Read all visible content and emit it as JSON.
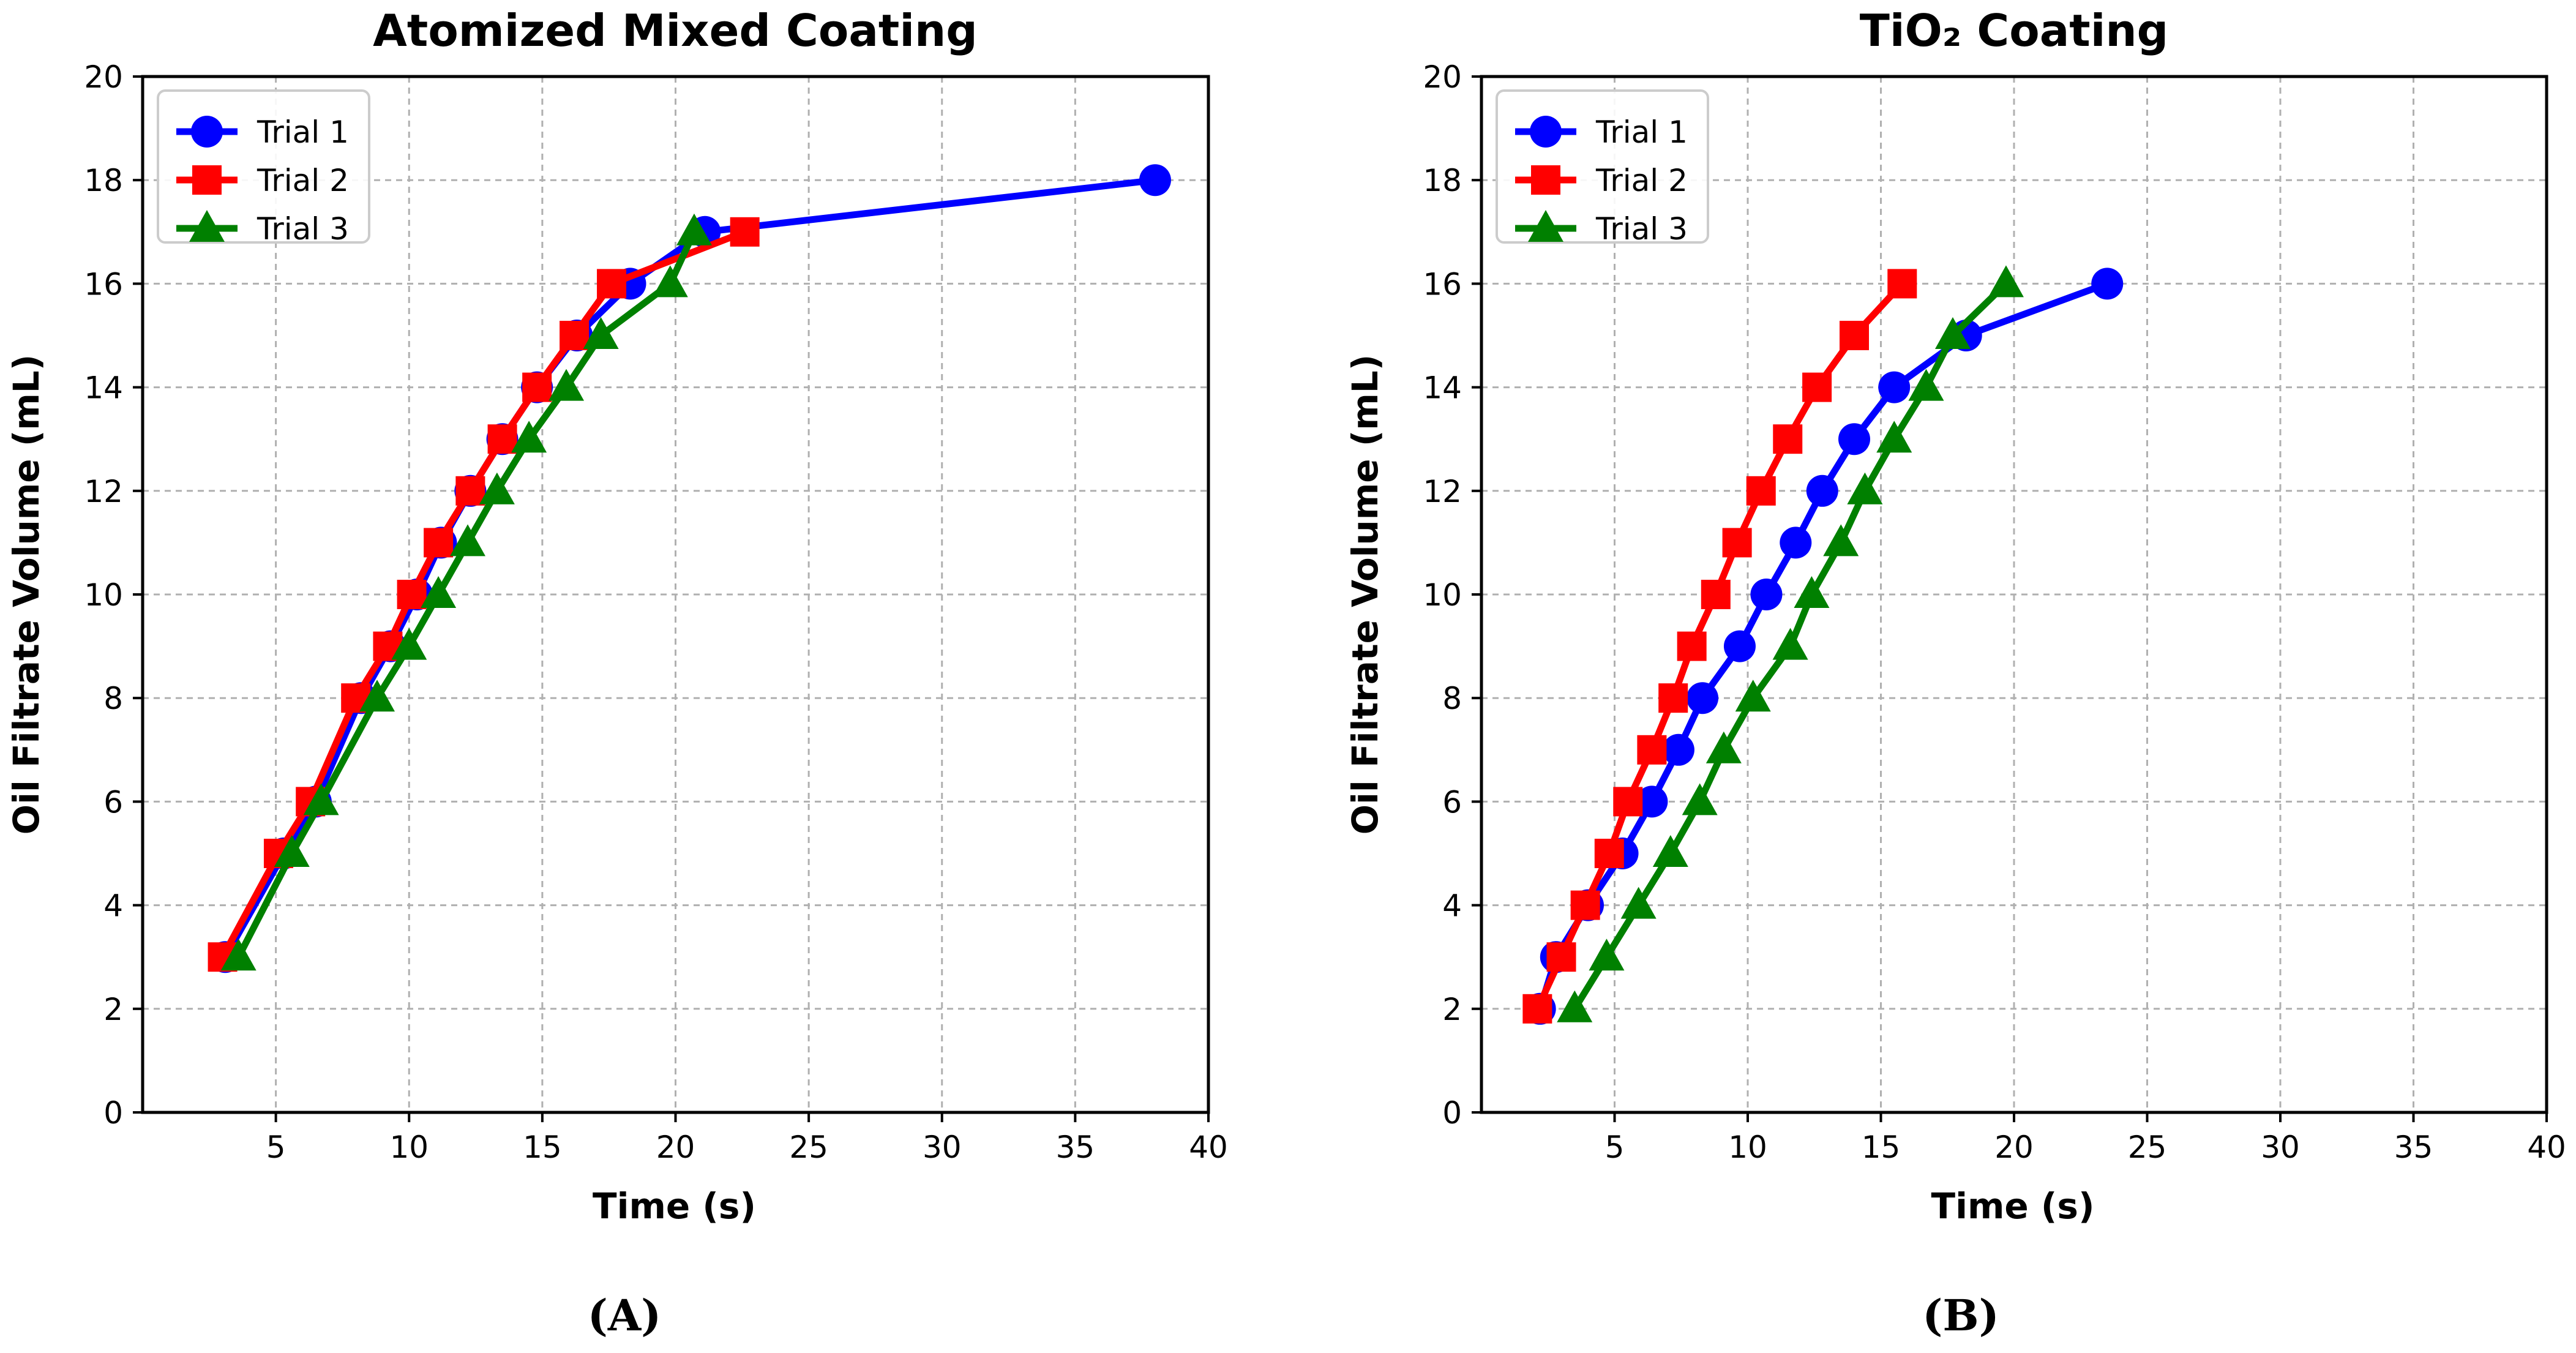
{
  "chart_data": [
    {
      "type": "line",
      "title": "Atomized Mixed Coating",
      "xlabel": "Time (s)",
      "ylabel": "Oil Filtrate Volume (mL)",
      "xlim": [
        0,
        40
      ],
      "ylim": [
        0,
        20
      ],
      "xticks": [
        5,
        10,
        15,
        20,
        25,
        30,
        35,
        40
      ],
      "yticks": [
        0,
        2,
        4,
        6,
        8,
        10,
        12,
        14,
        16,
        18,
        20
      ],
      "grid": true,
      "legend_position": "top-left",
      "panel_label": "(A)",
      "series": [
        {
          "name": "Trial 1",
          "color": "#0000ff",
          "marker": "circle",
          "x": [
            3.1,
            5.3,
            6.5,
            8.2,
            9.3,
            10.3,
            11.2,
            12.3,
            13.5,
            14.8,
            16.3,
            18.3,
            21.1,
            38.0
          ],
          "y": [
            3,
            5,
            6,
            8,
            9,
            10,
            11,
            12,
            13,
            14,
            15,
            16,
            17,
            18
          ]
        },
        {
          "name": "Trial 2",
          "color": "#ff0000",
          "marker": "square",
          "x": [
            3.0,
            5.1,
            6.3,
            8.0,
            9.2,
            10.1,
            11.1,
            12.3,
            13.5,
            14.8,
            16.2,
            17.6,
            22.6
          ],
          "y": [
            3,
            5,
            6,
            8,
            9,
            10,
            11,
            12,
            13,
            14,
            15,
            16,
            17
          ]
        },
        {
          "name": "Trial 3",
          "color": "#008000",
          "marker": "triangle",
          "x": [
            3.6,
            5.6,
            6.7,
            8.8,
            10.0,
            11.1,
            12.2,
            13.3,
            14.5,
            15.9,
            17.2,
            19.8,
            20.7
          ],
          "y": [
            3,
            5,
            6,
            8,
            9,
            10,
            11,
            12,
            13,
            14,
            15,
            16,
            17
          ]
        }
      ]
    },
    {
      "type": "line",
      "title": "TiO₂ Coating",
      "xlabel": "Time (s)",
      "ylabel": "Oil Filtrate Volume (mL)",
      "xlim": [
        0,
        40
      ],
      "ylim": [
        0,
        20
      ],
      "xticks": [
        5,
        10,
        15,
        20,
        25,
        30,
        35,
        40
      ],
      "yticks": [
        0,
        2,
        4,
        6,
        8,
        10,
        12,
        14,
        16,
        18,
        20
      ],
      "grid": true,
      "legend_position": "top-left",
      "panel_label": "(B)",
      "series": [
        {
          "name": "Trial 1",
          "color": "#0000ff",
          "marker": "circle",
          "x": [
            2.2,
            2.8,
            4.0,
            5.3,
            6.4,
            7.4,
            8.3,
            9.7,
            10.7,
            11.8,
            12.8,
            14.0,
            15.5,
            18.2,
            23.5
          ],
          "y": [
            2,
            3,
            4,
            5,
            6,
            7,
            8,
            9,
            10,
            11,
            12,
            13,
            14,
            15,
            16
          ]
        },
        {
          "name": "Trial 2",
          "color": "#ff0000",
          "marker": "square",
          "x": [
            2.1,
            3.0,
            3.9,
            4.8,
            5.5,
            6.4,
            7.2,
            7.9,
            8.8,
            9.6,
            10.5,
            11.5,
            12.6,
            14.0,
            15.8
          ],
          "y": [
            2,
            3,
            4,
            5,
            6,
            7,
            8,
            9,
            10,
            11,
            12,
            13,
            14,
            15,
            16
          ]
        },
        {
          "name": "Trial 3",
          "color": "#008000",
          "marker": "triangle",
          "x": [
            3.5,
            4.7,
            5.9,
            7.1,
            8.2,
            9.1,
            10.2,
            11.6,
            12.4,
            13.5,
            14.4,
            15.5,
            16.7,
            17.7,
            19.7
          ],
          "y": [
            2,
            3,
            4,
            5,
            6,
            7,
            8,
            9,
            10,
            11,
            12,
            13,
            14,
            15,
            16
          ]
        }
      ]
    }
  ]
}
